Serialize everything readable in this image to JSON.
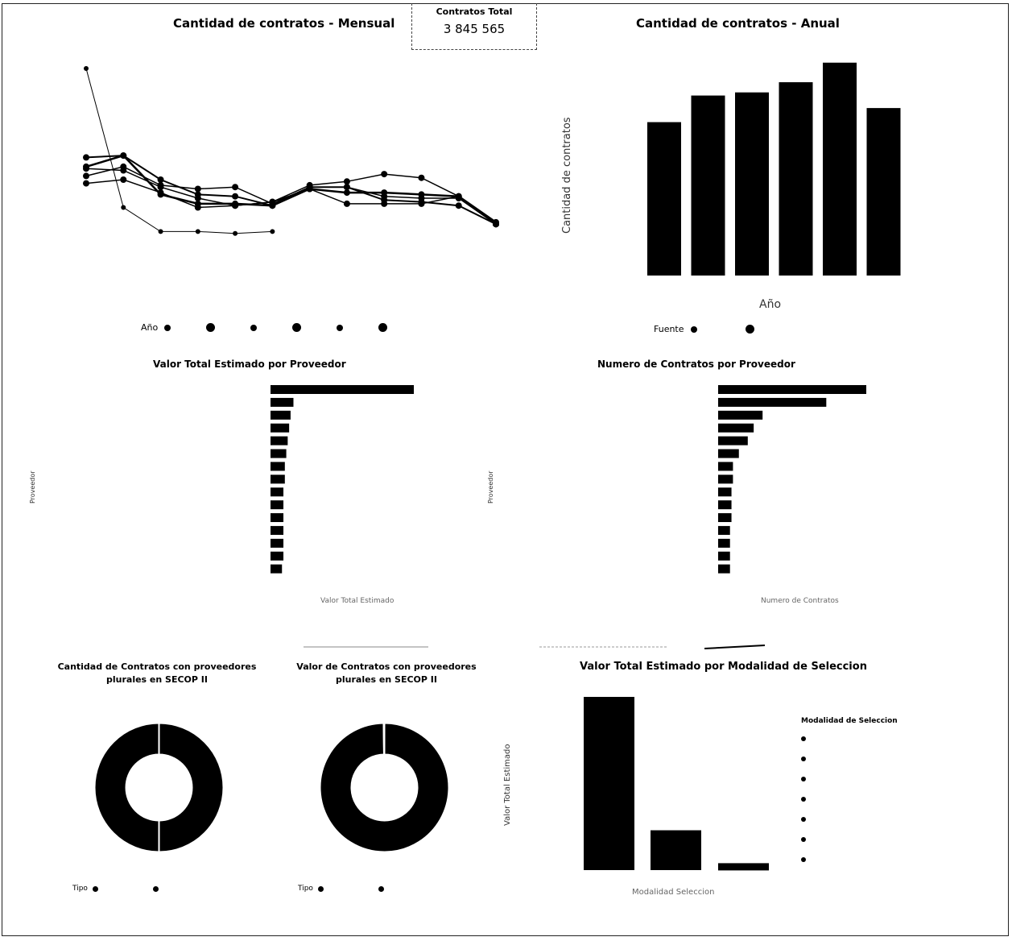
{
  "kpi": {
    "label": "Contratos Total",
    "value": "3 845 565"
  },
  "monthly": {
    "title": "Cantidad de contratos - Mensual",
    "legend_label": "Año",
    "legend_count": 6
  },
  "annual": {
    "title": "Cantidad de contratos - Anual",
    "ylabel": "Cantidad de contratos",
    "xlabel": "Año",
    "legend_label": "Fuente",
    "legend_count": 2
  },
  "prov_value": {
    "title": "Valor Total Estimado por Proveedor",
    "ylabel": "Proveedor",
    "xlabel": "Valor Total Estimado"
  },
  "prov_count": {
    "title": "Numero de Contratos por Proveedor",
    "ylabel": "Proveedor",
    "xlabel": "Numero de Contratos"
  },
  "donut_count": {
    "title": "Cantidad de Contratos con proveedores plurales en SECOP II",
    "legend_label": "Tipo"
  },
  "donut_value": {
    "title": "Valor de Contratos con proveedores plurales en SECOP II",
    "legend_label": "Tipo"
  },
  "modality": {
    "title": "Valor Total Estimado por Modalidad de Seleccion",
    "ylabel": "Valor Total Estimado",
    "xlabel": "Modalidad Seleccion",
    "legend_title": "Modalidad de Seleccion",
    "legend_count": 7
  },
  "colors": {
    "mark": "#000000",
    "frame": "#222222"
  },
  "chart_data": [
    {
      "type": "line",
      "name": "monthly",
      "x": [
        1,
        2,
        3,
        4,
        5,
        6,
        7,
        8,
        9,
        10,
        11,
        12
      ],
      "series": [
        {
          "values": [
            100,
            25,
            12,
            12,
            11,
            12,
            null,
            null,
            null,
            null,
            null,
            null
          ]
        },
        {
          "values": [
            52,
            53,
            40,
            32,
            31,
            26,
            36,
            36,
            29,
            28,
            26,
            16
          ]
        },
        {
          "values": [
            42,
            47,
            37,
            35,
            36,
            27,
            36,
            36,
            31,
            30,
            30,
            16
          ]
        },
        {
          "values": [
            46,
            45,
            36,
            30,
            26,
            28,
            37,
            39,
            43,
            41,
            31,
            16
          ]
        },
        {
          "values": [
            47,
            53,
            32,
            27,
            27,
            26,
            35,
            33,
            33,
            32,
            31,
            17
          ]
        },
        {
          "values": [
            38,
            40,
            33,
            25,
            26,
            28,
            35,
            27,
            27,
            27,
            31,
            16
          ]
        }
      ]
    },
    {
      "type": "bar",
      "name": "annual",
      "categories": [
        "",
        "",
        "",
        "",
        "",
        ""
      ],
      "values": [
        196,
        230,
        234,
        247,
        272,
        214
      ],
      "ylim": [
        0,
        280
      ]
    },
    {
      "type": "bar",
      "name": "prov_value",
      "orientation": "horizontal",
      "values": [
        100,
        16,
        14,
        13,
        12,
        11,
        10,
        10,
        9,
        9,
        9,
        9,
        9,
        9,
        8
      ]
    },
    {
      "type": "bar",
      "name": "prov_count",
      "orientation": "horizontal",
      "values": [
        100,
        73,
        30,
        24,
        20,
        14,
        10,
        10,
        9,
        9,
        9,
        8,
        8,
        8,
        8
      ]
    },
    {
      "type": "pie",
      "name": "donut_count",
      "values": [
        50,
        50
      ]
    },
    {
      "type": "pie",
      "name": "donut_value",
      "values": [
        99.8,
        0.2
      ]
    },
    {
      "type": "bar",
      "name": "modality",
      "categories": [
        "",
        "",
        ""
      ],
      "values": [
        100,
        23,
        4
      ],
      "ylim": [
        0,
        100
      ]
    }
  ]
}
